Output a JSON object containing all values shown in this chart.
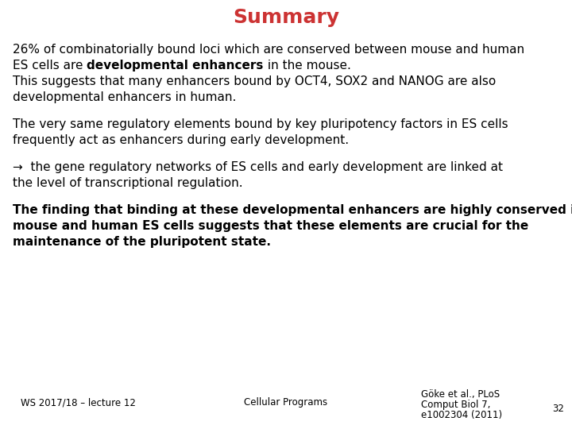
{
  "title": "Summary",
  "title_color": "#CC3333",
  "background_color": "#FFFFFF",
  "paragraph1_line1": "26% of combinatorially bound loci which are conserved between mouse and human",
  "paragraph1_line2_normal1": "ES cells are ",
  "paragraph1_line2_bold": "developmental enhancers",
  "paragraph1_line2_normal2": " in the mouse.",
  "paragraph1_line3": "This suggests that many enhancers bound by OCT4, SOX2 and NANOG are also",
  "paragraph1_line4": "developmental enhancers in human.",
  "paragraph2_line1": "The very same regulatory elements bound by key pluripotency factors in ES cells",
  "paragraph2_line2": "frequently act as enhancers during early development.",
  "paragraph3_line1_arrow": "→  the gene regulatory networks of ES cells and early development are linked at",
  "paragraph3_line2": "the level of transcriptional regulation.",
  "paragraph4_line1": "The finding that binding at these developmental enhancers are highly conserved in",
  "paragraph4_line2": "mouse and human ES cells suggests that these elements are crucial for the",
  "paragraph4_line3": "maintenance of the pluripotent state.",
  "footer_left": "WS 2017/18 – lecture 12",
  "footer_center": "Cellular Programs",
  "footer_right_line1": "Göke et al., PLoS",
  "footer_right_line2": "Comput Biol 7,",
  "footer_right_line3": "e1002304 (2011)",
  "footer_page": "32",
  "text_color": "#000000",
  "main_fontsize": 11.0,
  "footer_fontsize": 8.5,
  "title_fontsize": 18
}
